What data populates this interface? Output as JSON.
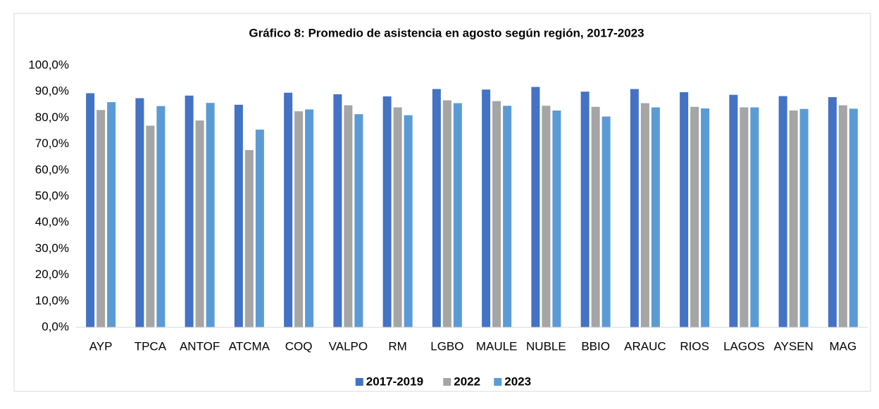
{
  "chart_data": {
    "type": "bar",
    "title": "Gráfico 8: Promedio de asistencia en agosto según región, 2017-2023",
    "categories": [
      "AYP",
      "TPCA",
      "ANTOF",
      "ATCMA",
      "COQ",
      "VALPO",
      "RM",
      "LGBO",
      "MAULE",
      "NUBLE",
      "BBIO",
      "ARAUC",
      "RIOS",
      "LAGOS",
      "AYSEN",
      "MAG"
    ],
    "series": [
      {
        "name": "2017-2019",
        "color": "#4472c4",
        "values": [
          89.4,
          87.5,
          88.5,
          85.0,
          89.6,
          89.0,
          88.2,
          91.0,
          90.8,
          91.8,
          90.0,
          91.0,
          89.8,
          88.8,
          88.3,
          87.9
        ]
      },
      {
        "name": "2022",
        "color": "#a5a5a5",
        "values": [
          83.0,
          77.0,
          79.0,
          67.7,
          82.5,
          84.8,
          84.0,
          86.7,
          86.4,
          84.6,
          84.2,
          85.6,
          84.2,
          84.0,
          82.8,
          84.8
        ]
      },
      {
        "name": "2023",
        "color": "#5b9bd5",
        "values": [
          86.0,
          84.5,
          85.7,
          75.5,
          83.2,
          81.4,
          81.0,
          85.6,
          84.6,
          82.8,
          80.5,
          84.0,
          83.6,
          84.0,
          83.4,
          83.5
        ]
      }
    ],
    "ylim": [
      0,
      100
    ],
    "yticks": [
      {
        "value": 0,
        "label": "0,0%"
      },
      {
        "value": 10,
        "label": "10,0%"
      },
      {
        "value": 20,
        "label": "20,0%"
      },
      {
        "value": 30,
        "label": "30,0%"
      },
      {
        "value": 40,
        "label": "40,0%"
      },
      {
        "value": 50,
        "label": "50,0%"
      },
      {
        "value": 60,
        "label": "60,0%"
      },
      {
        "value": 70,
        "label": "70,0%"
      },
      {
        "value": 80,
        "label": "80,0%"
      },
      {
        "value": 90,
        "label": "90,0%"
      },
      {
        "value": 100,
        "label": "100,0%"
      }
    ],
    "grid": false,
    "legend": "bottom"
  }
}
